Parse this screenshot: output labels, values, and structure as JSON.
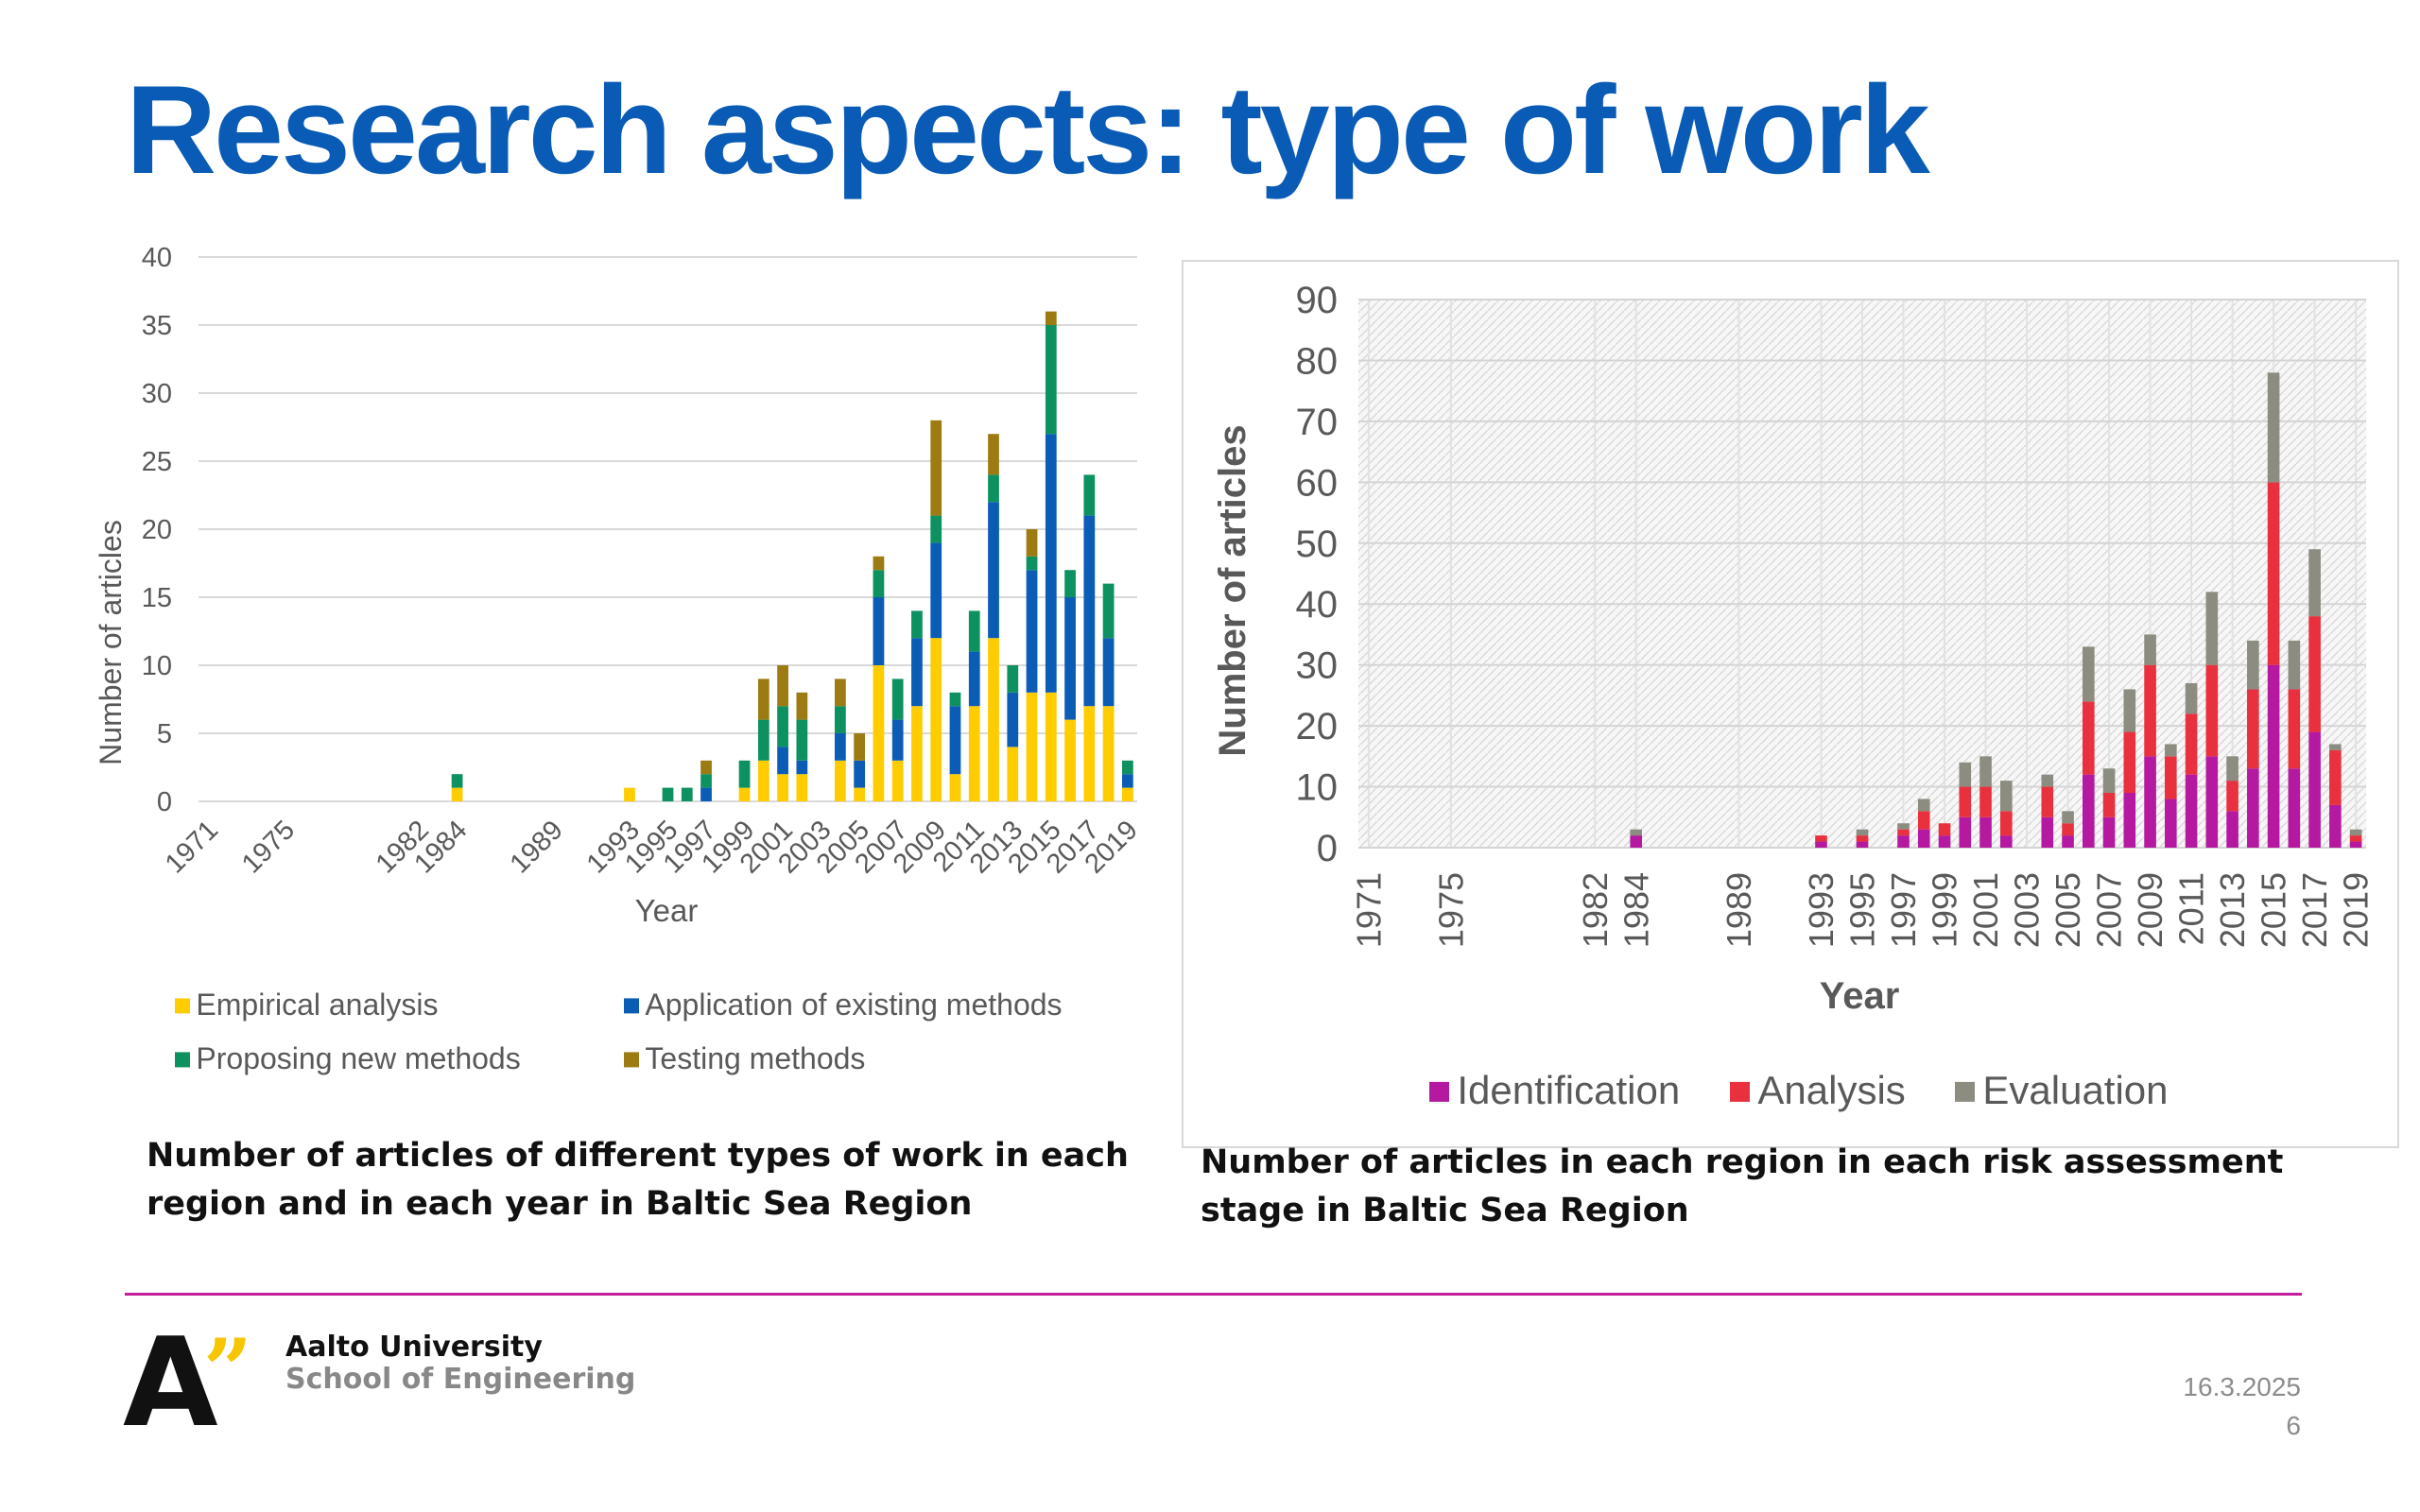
{
  "slide": {
    "title": "Research aspects: type of work",
    "caption_left": "Number of articles of different types of work in each region and in each year in Baltic Sea Region",
    "caption_right": "Number of articles in each region in each risk assessment stage in Baltic Sea Region",
    "logo_letter": "A",
    "logo_quote": "”",
    "university": "Aalto University",
    "school": "School of Engineering",
    "date": "16.3.2025",
    "page_number": "6"
  },
  "chart_data": [
    {
      "type": "bar",
      "stacked": true,
      "categories": [
        "1971",
        "1975",
        "1982",
        "1984",
        "1989",
        "1993",
        "1995",
        "1997",
        "1999",
        "2001",
        "2003",
        "2005",
        "2007",
        "2009",
        "2011",
        "2013",
        "2015",
        "2017",
        "2019"
      ],
      "bars": [
        {
          "year": "1984",
          "values": [
            1,
            0,
            1,
            0
          ]
        },
        {
          "year": "1993",
          "values": [
            1,
            0,
            0,
            0
          ]
        },
        {
          "year": "1995",
          "values": [
            0,
            0,
            1,
            0
          ]
        },
        {
          "year": "1996",
          "values": [
            0,
            0,
            1,
            0
          ]
        },
        {
          "year": "1997",
          "values": [
            0,
            1,
            1,
            1
          ]
        },
        {
          "year": "1999",
          "values": [
            1,
            0,
            2,
            0
          ]
        },
        {
          "year": "2000",
          "values": [
            3,
            0,
            3,
            3
          ]
        },
        {
          "year": "2001",
          "values": [
            2,
            2,
            3,
            3
          ]
        },
        {
          "year": "2002",
          "values": [
            2,
            1,
            3,
            2
          ]
        },
        {
          "year": "2004",
          "values": [
            3,
            2,
            2,
            2
          ]
        },
        {
          "year": "2005",
          "values": [
            1,
            2,
            0,
            2
          ]
        },
        {
          "year": "2006",
          "values": [
            10,
            5,
            2,
            1
          ]
        },
        {
          "year": "2007",
          "values": [
            3,
            3,
            3,
            0
          ]
        },
        {
          "year": "2008",
          "values": [
            7,
            5,
            2,
            0
          ]
        },
        {
          "year": "2009",
          "values": [
            12,
            7,
            2,
            7
          ]
        },
        {
          "year": "2010",
          "values": [
            2,
            5,
            1,
            0
          ]
        },
        {
          "year": "2011",
          "values": [
            7,
            4,
            3,
            0
          ]
        },
        {
          "year": "2012",
          "values": [
            12,
            10,
            2,
            3
          ]
        },
        {
          "year": "2013",
          "values": [
            4,
            4,
            2,
            0
          ]
        },
        {
          "year": "2014",
          "values": [
            8,
            9,
            1,
            2
          ]
        },
        {
          "year": "2015",
          "values": [
            8,
            19,
            8,
            1
          ]
        },
        {
          "year": "2016",
          "values": [
            6,
            9,
            2,
            0
          ]
        },
        {
          "year": "2017",
          "values": [
            7,
            14,
            3,
            0
          ]
        },
        {
          "year": "2018",
          "values": [
            7,
            5,
            4,
            0
          ]
        },
        {
          "year": "2019",
          "values": [
            1,
            1,
            1,
            0
          ]
        }
      ],
      "series": [
        {
          "name": "Empirical analysis",
          "color": "#ffcc00"
        },
        {
          "name": "Application of existing methods",
          "color": "#0b5cb5"
        },
        {
          "name": "Proposing new methods",
          "color": "#0d9160"
        },
        {
          "name": "Testing methods",
          "color": "#9c7b12"
        }
      ],
      "xlabel": "Year",
      "ylabel": "Number of articles",
      "ylim": [
        0,
        40
      ],
      "yticks": [
        0,
        5,
        10,
        15,
        20,
        25,
        30,
        35,
        40
      ],
      "grid": true,
      "legend_position": "bottom"
    },
    {
      "type": "bar",
      "stacked": true,
      "categories": [
        "1971",
        "1975",
        "1982",
        "1984",
        "1989",
        "1993",
        "1995",
        "1997",
        "1999",
        "2001",
        "2003",
        "2005",
        "2007",
        "2009",
        "2011",
        "2013",
        "2015",
        "2017",
        "2019"
      ],
      "bars": [
        {
          "year": "1984",
          "values": [
            2,
            0,
            1
          ]
        },
        {
          "year": "1993",
          "values": [
            1,
            1,
            0
          ]
        },
        {
          "year": "1995",
          "values": [
            1,
            1,
            1
          ]
        },
        {
          "year": "1997",
          "values": [
            2,
            1,
            1
          ]
        },
        {
          "year": "1998",
          "values": [
            3,
            3,
            2
          ]
        },
        {
          "year": "1999",
          "values": [
            2,
            2,
            0
          ]
        },
        {
          "year": "2000",
          "values": [
            5,
            5,
            4
          ]
        },
        {
          "year": "2001",
          "values": [
            5,
            5,
            5
          ]
        },
        {
          "year": "2002",
          "values": [
            2,
            4,
            5
          ]
        },
        {
          "year": "2004",
          "values": [
            5,
            5,
            2
          ]
        },
        {
          "year": "2005",
          "values": [
            2,
            2,
            2
          ]
        },
        {
          "year": "2006",
          "values": [
            12,
            12,
            9
          ]
        },
        {
          "year": "2007",
          "values": [
            5,
            4,
            4
          ]
        },
        {
          "year": "2008",
          "values": [
            9,
            10,
            7
          ]
        },
        {
          "year": "2009",
          "values": [
            15,
            15,
            5
          ]
        },
        {
          "year": "2010",
          "values": [
            8,
            7,
            2
          ]
        },
        {
          "year": "2011",
          "values": [
            12,
            10,
            5
          ]
        },
        {
          "year": "2012",
          "values": [
            15,
            15,
            12
          ]
        },
        {
          "year": "2013",
          "values": [
            6,
            5,
            4
          ]
        },
        {
          "year": "2014",
          "values": [
            13,
            13,
            8
          ]
        },
        {
          "year": "2015",
          "values": [
            30,
            30,
            18
          ]
        },
        {
          "year": "2016",
          "values": [
            13,
            13,
            8
          ]
        },
        {
          "year": "2017",
          "values": [
            19,
            19,
            11
          ]
        },
        {
          "year": "2018",
          "values": [
            7,
            9,
            1
          ]
        },
        {
          "year": "2019",
          "values": [
            1,
            1,
            1
          ]
        }
      ],
      "series": [
        {
          "name": "Identification",
          "color": "#b5199f"
        },
        {
          "name": "Analysis",
          "color": "#e8303e"
        },
        {
          "name": "Evaluation",
          "color": "#8c8c80"
        }
      ],
      "xlabel": "Year",
      "ylabel": "Number of articles",
      "ylim": [
        0,
        90
      ],
      "yticks": [
        0,
        10,
        20,
        30,
        40,
        50,
        60,
        70,
        80,
        90
      ],
      "grid": true,
      "legend_position": "bottom"
    }
  ]
}
